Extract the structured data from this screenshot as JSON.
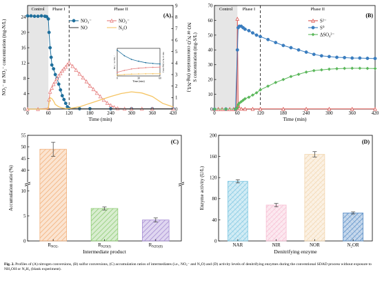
{
  "panels": {
    "A": {
      "tag": "(A)",
      "type": "line",
      "xlabel": "Time (min)",
      "ylabel_left": "NO₃⁻ or NO₂⁻ concentration (mg-N/L)",
      "ylabel_right": "NO or N₂O concentration (mg-N/L)",
      "xlim": [
        0,
        420
      ],
      "ylim_left": [
        0,
        27
      ],
      "ylim_right": [
        0,
        9
      ],
      "xticks": [
        0,
        60,
        120,
        180,
        240,
        300,
        360,
        420
      ],
      "yticks_left": [
        0,
        4,
        8,
        12,
        16,
        20,
        24
      ],
      "yticks_right": [
        0,
        1,
        2,
        3,
        4,
        5,
        6,
        7,
        8,
        9
      ],
      "region_labels": {
        "control": "Control",
        "phase1": "Phase I",
        "phase2": "Phase II"
      },
      "divider_x": 120,
      "control_end": 60,
      "legend": [
        "NO₃⁻",
        "NO₂⁻",
        "NO",
        "N₂O"
      ],
      "series": [
        {
          "name": "NO₃⁻",
          "axis": "left",
          "color": "#1f6f9c",
          "marker": "circle",
          "x": [
            0,
            10,
            20,
            30,
            40,
            50,
            55,
            60,
            62,
            65,
            68,
            70,
            75,
            80,
            85,
            90,
            95,
            100,
            105,
            110,
            115,
            120,
            150,
            180,
            240,
            300,
            360,
            420
          ],
          "y": [
            24.3,
            24.3,
            24.2,
            24.2,
            24.3,
            24.2,
            24.1,
            23.5,
            20,
            16,
            13.5,
            11.5,
            10.5,
            9,
            8,
            6.5,
            5,
            3.5,
            2.5,
            1.5,
            0.6,
            0.2,
            0.1,
            0.1,
            0.1,
            0.1,
            0.1,
            0.1
          ]
        },
        {
          "name": "NO₂⁻",
          "axis": "left",
          "color": "#e57f7f",
          "marker": "triangle",
          "x": [
            0,
            30,
            60,
            62,
            65,
            70,
            75,
            80,
            85,
            90,
            95,
            100,
            105,
            110,
            115,
            120,
            130,
            140,
            150,
            160,
            170,
            180,
            190,
            200,
            210,
            220,
            230,
            240,
            250,
            260,
            280,
            300,
            330,
            360,
            420
          ],
          "y": [
            0,
            0,
            0.2,
            2.5,
            4.5,
            5.5,
            6.5,
            7.2,
            8,
            8.7,
            9.3,
            10,
            10.5,
            11,
            11.6,
            12.1,
            11.2,
            10.2,
            9.2,
            8.2,
            7.2,
            6.1,
            5.2,
            4.2,
            3.3,
            2.4,
            1.6,
            1,
            0.5,
            0.2,
            0.1,
            0.1,
            0.1,
            0.1,
            0.1
          ]
        },
        {
          "name": "NO",
          "axis": "right",
          "color": "#444444",
          "marker": "none",
          "x": [
            0,
            60,
            120,
            180,
            240,
            300,
            360,
            420
          ],
          "y": [
            0,
            0,
            0.02,
            0.02,
            0.02,
            0.02,
            0.02,
            0.02
          ]
        },
        {
          "name": "N₂O",
          "axis": "right",
          "color": "#f5c463",
          "marker": "none",
          "x": [
            0,
            55,
            60,
            62,
            65,
            70,
            75,
            80,
            90,
            100,
            110,
            120,
            150,
            180,
            210,
            240,
            270,
            300,
            330,
            360,
            390,
            420
          ],
          "y": [
            0,
            0,
            0.05,
            0.5,
            1.0,
            0.9,
            0.7,
            0.4,
            0.2,
            0.1,
            0.05,
            0.05,
            0.2,
            0.5,
            0.8,
            1.1,
            1.35,
            1.5,
            1.4,
            1.1,
            0.5,
            0.2
          ]
        }
      ],
      "inset": {
        "xlabel": "Time (min)",
        "ylabel_left": "NO₃⁻ or NO₂⁻",
        "ylabel_right": "NO or N₂O (mg-N/L)",
        "xticks": [
          0,
          30,
          60
        ],
        "series": [
          {
            "name": "NO₃⁻",
            "color": "#1f6f9c",
            "x": [
              0,
              10,
              20,
              30,
              40,
              50,
              60
            ],
            "y": [
              14,
              11,
              9,
              8,
              7.2,
              6.8,
              6.5
            ]
          },
          {
            "name": "NO₂⁻",
            "color": "#e57f7f",
            "x": [
              0,
              10,
              20,
              30,
              40,
              50,
              60
            ],
            "y": [
              2,
              3,
              3.8,
              4.2,
              4.5,
              4.7,
              4.8
            ]
          },
          {
            "name": "N₂O",
            "color": "#f5c463",
            "x": [
              0,
              10,
              20,
              30,
              40,
              50,
              60
            ],
            "y": [
              0.5,
              0.8,
              1.0,
              1.1,
              1.15,
              1.2,
              1.2
            ]
          }
        ]
      }
    },
    "B": {
      "tag": "(B)",
      "type": "line",
      "xlabel": "Time (min)",
      "ylabel": "S concentration (mg-S/L)",
      "xlim": [
        0,
        420
      ],
      "ylim": [
        0,
        70
      ],
      "xticks": [
        0,
        60,
        120,
        180,
        240,
        300,
        360,
        420
      ],
      "yticks": [
        0,
        10,
        20,
        30,
        40,
        50,
        60,
        70
      ],
      "region_labels": {
        "control": "Control",
        "phase1": "Phase I",
        "phase2": "Phase II"
      },
      "divider_x": 120,
      "control_end": 60,
      "legend": [
        "S²⁻",
        "S⁰",
        "ΔSO₄²⁻"
      ],
      "series": [
        {
          "name": "S²⁻",
          "color": "#d9534f",
          "marker": "triangle",
          "x": [
            0,
            10,
            20,
            30,
            40,
            50,
            55,
            58,
            60,
            62,
            65,
            70,
            80,
            100,
            120,
            180,
            240,
            300,
            360,
            420
          ],
          "y": [
            0,
            0,
            0,
            0,
            0,
            0,
            0,
            1,
            61,
            3,
            0.5,
            0.2,
            0.1,
            0.1,
            0.1,
            0.1,
            0.1,
            0.1,
            0.1,
            0.1
          ]
        },
        {
          "name": "S⁰",
          "color": "#3a7dbf",
          "marker": "circle",
          "x": [
            0,
            30,
            55,
            60,
            62,
            65,
            70,
            75,
            80,
            90,
            100,
            110,
            120,
            140,
            160,
            180,
            200,
            220,
            240,
            260,
            280,
            300,
            320,
            340,
            360,
            380,
            400,
            420
          ],
          "y": [
            0,
            0,
            0,
            40,
            55,
            56,
            56,
            55,
            54,
            53,
            51.5,
            50,
            49,
            47,
            45,
            43,
            41.5,
            40,
            38.5,
            37,
            36,
            35.5,
            35,
            34.8,
            34.5,
            34.5,
            34.3,
            34.2
          ]
        },
        {
          "name": "ΔSO₄²⁻",
          "color": "#5cb85c",
          "marker": "diamond",
          "x": [
            0,
            30,
            55,
            60,
            62,
            65,
            70,
            75,
            80,
            90,
            100,
            110,
            120,
            140,
            160,
            180,
            200,
            220,
            240,
            260,
            280,
            300,
            320,
            340,
            360,
            380,
            400,
            420
          ],
          "y": [
            0,
            0,
            0,
            1,
            3,
            4,
            5,
            6,
            7,
            8,
            9.5,
            11,
            13,
            15.5,
            18,
            20,
            22,
            23.5,
            25,
            26,
            26.5,
            27,
            27.3,
            27.5,
            27.6,
            27.6,
            27.5,
            27.4
          ]
        }
      ]
    },
    "C": {
      "tag": "(C)",
      "type": "bar",
      "xlabel": "Intermediate product",
      "ylabel": "Accumulation ratio (%)",
      "categories": [
        "R_NO2-",
        "R_N2O(I)",
        "R_N2O(II)"
      ],
      "category_labels": [
        {
          "main": "R",
          "sub": "NO2-"
        },
        {
          "main": "R",
          "sub": "N2O(I)"
        },
        {
          "main": "R",
          "sub": "N2O(II)"
        }
      ],
      "values": [
        49,
        6.5,
        4.2
      ],
      "errors": [
        3,
        0.3,
        0.4
      ],
      "colors": [
        "#f2b07a",
        "#8ecb74",
        "#a48ad2"
      ],
      "axis_break": {
        "lower": [
          0,
          11
        ],
        "upper": [
          35,
          55
        ]
      },
      "yticks_lower": [
        0,
        5,
        10
      ],
      "yticks_upper": [
        40,
        45,
        50,
        55
      ]
    },
    "D": {
      "tag": "(D)",
      "type": "bar",
      "xlabel": "Denitrifying enzyme",
      "ylabel": "Enzyme activity (U/L)",
      "categories": [
        "NAR",
        "NIR",
        "NOR",
        "N₂OR"
      ],
      "values": [
        113,
        68,
        164,
        53
      ],
      "errors": [
        3,
        3,
        5,
        2
      ],
      "colors": [
        "#7ec7e2",
        "#f7bed3",
        "#f2d7b0",
        "#5b8fc7"
      ],
      "ylim": [
        0,
        200
      ],
      "yticks": [
        0,
        40,
        80,
        120,
        160,
        200
      ]
    }
  },
  "caption": {
    "lead": "Fig. 2.",
    "text": " Profiles of (A) nitrogen conversions, (B) sulfur conversions, (C) accumulation ratios of intermediates (i.e., NO₂⁻ and N₂O) and (D) activity levels of denitrifying enzymes during the conventional SDAD process without exposure to NH₂OH or N₂H₄ (blank experiment)."
  }
}
